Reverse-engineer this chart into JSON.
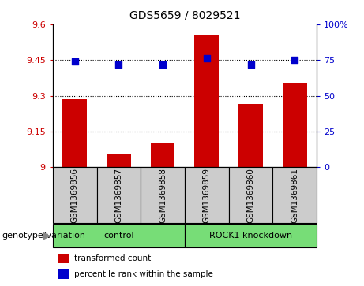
{
  "title": "GDS5659 / 8029521",
  "samples": [
    "GSM1369856",
    "GSM1369857",
    "GSM1369858",
    "GSM1369859",
    "GSM1369860",
    "GSM1369861"
  ],
  "bar_values": [
    9.285,
    9.055,
    9.1,
    9.555,
    9.265,
    9.355
  ],
  "dot_values": [
    74,
    72,
    72,
    76,
    72,
    75
  ],
  "ylim_left": [
    9.0,
    9.6
  ],
  "ylim_right": [
    0,
    100
  ],
  "yticks_left": [
    9.0,
    9.15,
    9.3,
    9.45,
    9.6
  ],
  "yticks_right": [
    0,
    25,
    50,
    75,
    100
  ],
  "ytick_labels_left": [
    "9",
    "9.15",
    "9.3",
    "9.45",
    "9.6"
  ],
  "ytick_labels_right": [
    "0",
    "25",
    "50",
    "75",
    "100%"
  ],
  "hlines": [
    9.15,
    9.3,
    9.45
  ],
  "bar_color": "#cc0000",
  "dot_color": "#0000cc",
  "groups": [
    {
      "label": "control",
      "indices": [
        0,
        1,
        2
      ],
      "color": "#77dd77"
    },
    {
      "label": "ROCK1 knockdown",
      "indices": [
        3,
        4,
        5
      ],
      "color": "#77dd77"
    }
  ],
  "group_row_label": "genotype/variation",
  "legend_bar_label": "transformed count",
  "legend_dot_label": "percentile rank within the sample",
  "bar_width": 0.55,
  "dot_size": 28,
  "sample_box_color": "#cccccc",
  "title_fontsize": 10,
  "tick_fontsize": 8,
  "label_fontsize": 8,
  "sample_fontsize": 7.5
}
